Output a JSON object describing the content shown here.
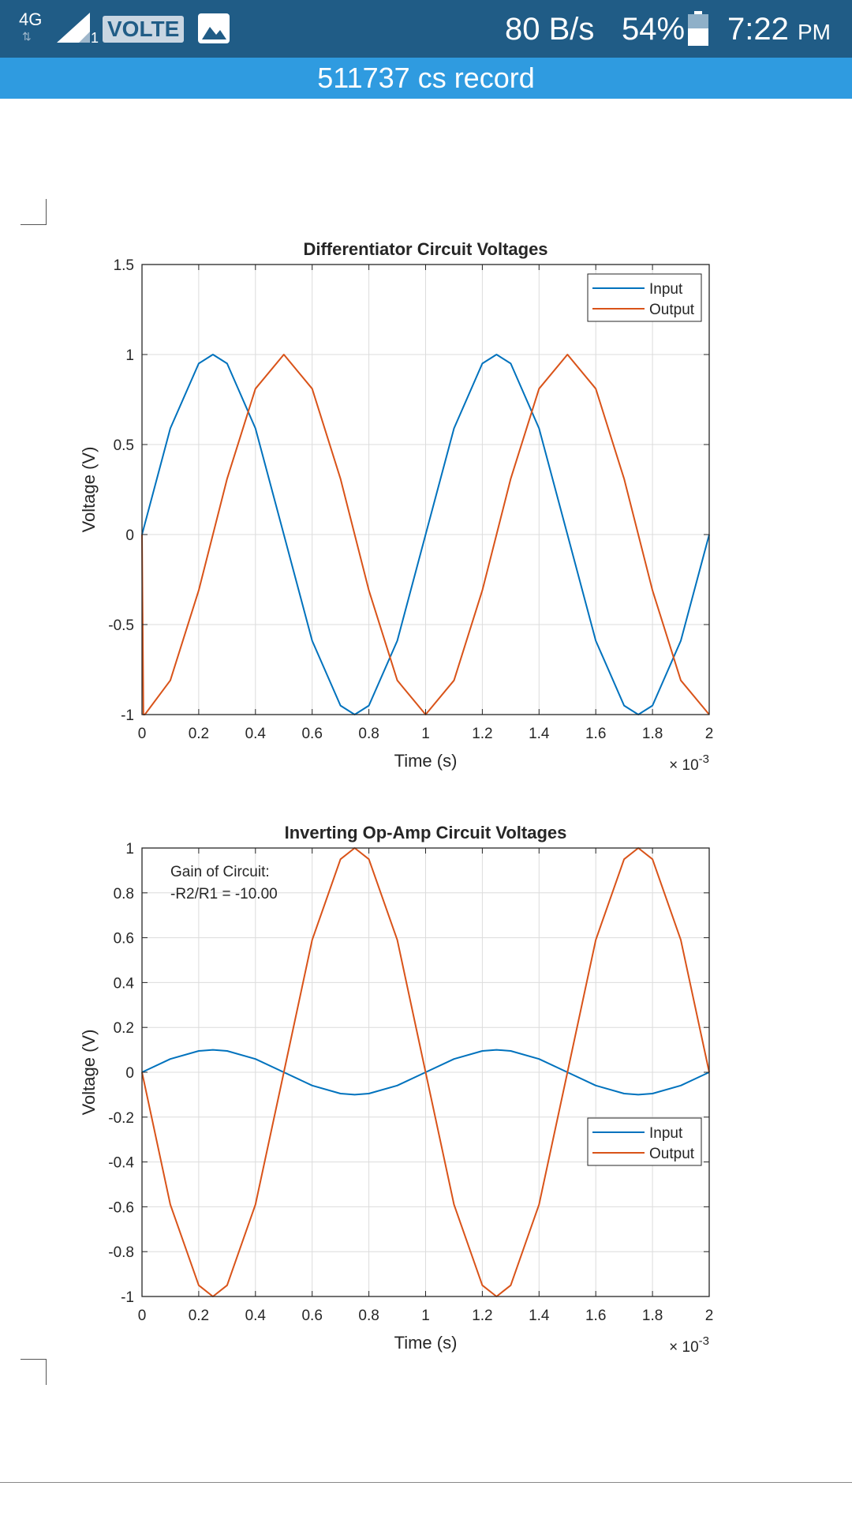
{
  "status_bar": {
    "network": "4G",
    "sim_slot": "1",
    "volte": "VOLTE",
    "speed": "80 B/s",
    "battery": "54%",
    "time": "7:22",
    "ampm": "PM",
    "icons": [
      "signal-icon",
      "gallery-icon",
      "battery-icon"
    ],
    "background": "#205c86"
  },
  "header": {
    "title": "511737 cs record",
    "background": "#2f9be0"
  },
  "colors": {
    "input": "#0072bd",
    "output": "#d95319"
  },
  "chart_data": [
    {
      "type": "line",
      "title": "Differentiator Circuit Voltages",
      "xlabel": "Time (s)",
      "ylabel": "Voltage (V)",
      "x_exponent": "× 10-3",
      "xlim": [
        0,
        2
      ],
      "ylim": [
        -1,
        1.5
      ],
      "xticks": [
        0,
        0.2,
        0.4,
        0.6,
        0.8,
        1,
        1.2,
        1.4,
        1.6,
        1.8,
        2
      ],
      "xtick_labels": [
        "0",
        "0.2",
        "0.4",
        "0.6",
        "0.8",
        "1",
        "1.2",
        "1.4",
        "1.6",
        "1.8",
        "2"
      ],
      "yticks": [
        -1,
        -0.5,
        0,
        0.5,
        1,
        1.5
      ],
      "ytick_labels": [
        "-1",
        "-0.5",
        "0",
        "0.5",
        "1",
        "1.5"
      ],
      "grid": true,
      "legend_position": "top-right",
      "series": [
        {
          "name": "Input",
          "x": [
            0,
            0.1,
            0.2,
            0.25,
            0.3,
            0.4,
            0.5,
            0.6,
            0.7,
            0.75,
            0.8,
            0.9,
            1.0,
            1.1,
            1.2,
            1.25,
            1.3,
            1.4,
            1.5,
            1.6,
            1.7,
            1.75,
            1.8,
            1.9,
            2.0
          ],
          "y": [
            0,
            0.59,
            0.95,
            1,
            0.95,
            0.59,
            0,
            -0.59,
            -0.95,
            -1,
            -0.95,
            -0.59,
            0,
            0.59,
            0.95,
            1,
            0.95,
            0.59,
            0,
            -0.59,
            -0.95,
            -1,
            -0.95,
            -0.59,
            0
          ]
        },
        {
          "name": "Output",
          "x": [
            0,
            0.005,
            0.01,
            0.1,
            0.2,
            0.3,
            0.4,
            0.5,
            0.6,
            0.7,
            0.8,
            0.9,
            1.0,
            1.1,
            1.2,
            1.3,
            1.4,
            1.5,
            1.6,
            1.7,
            1.8,
            1.9,
            2.0
          ],
          "y": [
            0,
            -1,
            -1,
            -0.81,
            -0.31,
            0.31,
            0.81,
            1,
            0.81,
            0.31,
            -0.31,
            -0.81,
            -1,
            -0.81,
            -0.31,
            0.31,
            0.81,
            1,
            0.81,
            0.31,
            -0.31,
            -0.81,
            -1
          ]
        }
      ]
    },
    {
      "type": "line",
      "title": "Inverting Op-Amp Circuit Voltages",
      "xlabel": "Time (s)",
      "ylabel": "Voltage (V)",
      "x_exponent": "× 10-3",
      "xlim": [
        0,
        2
      ],
      "ylim": [
        -1,
        1
      ],
      "xticks": [
        0,
        0.2,
        0.4,
        0.6,
        0.8,
        1,
        1.2,
        1.4,
        1.6,
        1.8,
        2
      ],
      "xtick_labels": [
        "0",
        "0.2",
        "0.4",
        "0.6",
        "0.8",
        "1",
        "1.2",
        "1.4",
        "1.6",
        "1.8",
        "2"
      ],
      "yticks": [
        -1,
        -0.8,
        -0.6,
        -0.4,
        -0.2,
        0,
        0.2,
        0.4,
        0.6,
        0.8,
        1
      ],
      "ytick_labels": [
        "-1",
        "-0.8",
        "-0.6",
        "-0.4",
        "-0.2",
        "0",
        "0.2",
        "0.4",
        "0.6",
        "0.8",
        "1"
      ],
      "grid": true,
      "legend_position": "middle-right",
      "annotation": [
        "Gain of Circuit:",
        "-R2/R1 = -10.00"
      ],
      "series": [
        {
          "name": "Input",
          "x": [
            0,
            0.1,
            0.2,
            0.25,
            0.3,
            0.4,
            0.5,
            0.6,
            0.7,
            0.75,
            0.8,
            0.9,
            1.0,
            1.1,
            1.2,
            1.25,
            1.3,
            1.4,
            1.5,
            1.6,
            1.7,
            1.75,
            1.8,
            1.9,
            2.0
          ],
          "y": [
            0,
            0.059,
            0.095,
            0.1,
            0.095,
            0.059,
            0,
            -0.059,
            -0.095,
            -0.1,
            -0.095,
            -0.059,
            0,
            0.059,
            0.095,
            0.1,
            0.095,
            0.059,
            0,
            -0.059,
            -0.095,
            -0.1,
            -0.095,
            -0.059,
            0
          ]
        },
        {
          "name": "Output",
          "x": [
            0,
            0.1,
            0.2,
            0.25,
            0.3,
            0.4,
            0.5,
            0.6,
            0.7,
            0.75,
            0.8,
            0.9,
            1.0,
            1.1,
            1.2,
            1.25,
            1.3,
            1.4,
            1.5,
            1.6,
            1.7,
            1.75,
            1.8,
            1.9,
            2.0
          ],
          "y": [
            0,
            -0.59,
            -0.95,
            -1,
            -0.95,
            -0.59,
            0,
            0.59,
            0.95,
            1,
            0.95,
            0.59,
            0,
            -0.59,
            -0.95,
            -1,
            -0.95,
            -0.59,
            0,
            0.59,
            0.95,
            1,
            0.95,
            0.59,
            0
          ]
        }
      ]
    }
  ]
}
